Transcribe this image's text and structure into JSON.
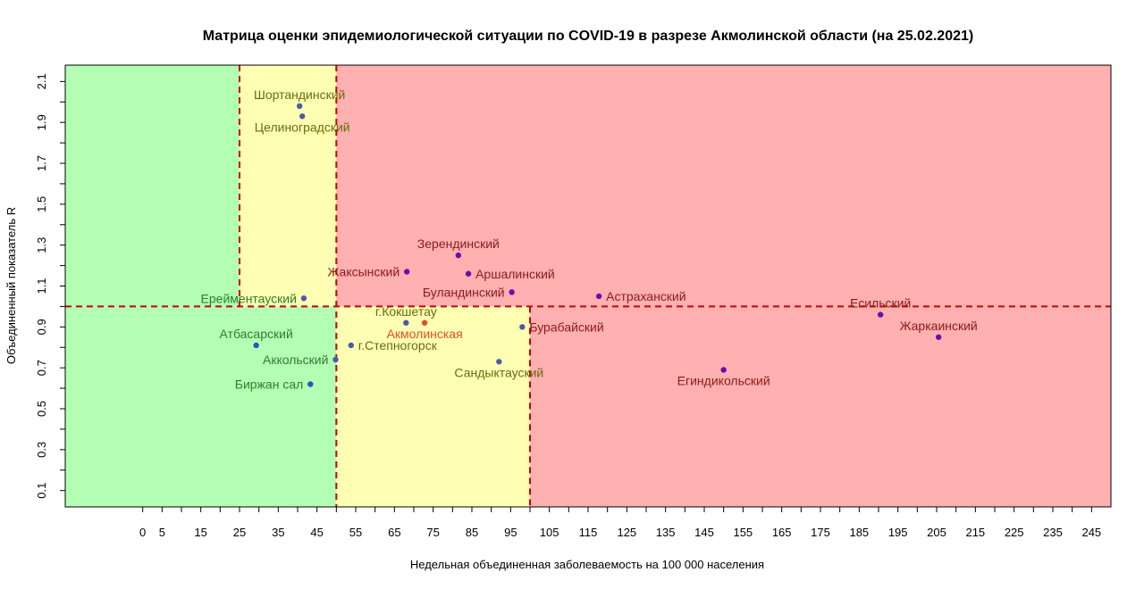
{
  "chart_data": {
    "type": "scatter",
    "title": "Матрица оценки эпидемиологической ситуации по COVID-19 в разрезе Акмолинской области (на 25.02.2021)",
    "xlabel": "Недельная объединенная заболеваемость на 100 000 населения",
    "ylabel": "Объединенный показатель R",
    "xlim": [
      -20,
      250
    ],
    "ylim": [
      0.02,
      2.18
    ],
    "x_ticks": [
      0,
      5,
      15,
      25,
      35,
      45,
      55,
      65,
      75,
      85,
      95,
      105,
      115,
      125,
      135,
      145,
      155,
      165,
      175,
      185,
      195,
      205,
      215,
      225,
      235,
      245
    ],
    "y_ticks": [
      0.1,
      0.3,
      0.5,
      0.7,
      0.9,
      1.1,
      1.3,
      1.5,
      1.7,
      1.9,
      2.1
    ],
    "zones": [
      {
        "xmin": -20,
        "xmax": 25,
        "ymin": 1.0,
        "ymax": 2.18,
        "color": "#b3ffb3"
      },
      {
        "xmin": -20,
        "xmax": 50,
        "ymin": 0.02,
        "ymax": 1.0,
        "color": "#b3ffb3"
      },
      {
        "xmin": 25,
        "xmax": 50,
        "ymin": 1.0,
        "ymax": 2.18,
        "color": "#ffffb3"
      },
      {
        "xmin": 50,
        "xmax": 100,
        "ymin": 0.02,
        "ymax": 1.0,
        "color": "#ffffb3"
      },
      {
        "xmin": 50,
        "xmax": 250,
        "ymin": 1.0,
        "ymax": 2.18,
        "color": "#ffb0b0"
      },
      {
        "xmin": 100,
        "xmax": 250,
        "ymin": 0.02,
        "ymax": 1.0,
        "color": "#ffb0b0"
      }
    ],
    "reference_lines": [
      {
        "orientation": "vertical",
        "value": 25,
        "from": 1.0,
        "to": 2.18,
        "color": "#cc0000"
      },
      {
        "orientation": "vertical",
        "value": 50,
        "from": 0.02,
        "to": 2.18,
        "color": "#cc0000"
      },
      {
        "orientation": "vertical",
        "value": 100,
        "from": 0.02,
        "to": 1.0,
        "color": "#cc0000"
      },
      {
        "orientation": "horizontal",
        "value": 1.0,
        "from": -20,
        "to": 250,
        "color": "#cc0000"
      }
    ],
    "points": [
      {
        "name": "Шортандинский",
        "x": 40.5,
        "y": 1.98,
        "color": "#4a5aa8",
        "label_color": "#6b6b10",
        "pos": "above"
      },
      {
        "name": "Целиноградский",
        "x": 41.2,
        "y": 1.93,
        "color": "#4a5aa8",
        "label_color": "#6b6b10",
        "pos": "below"
      },
      {
        "name": "Зерендинский",
        "x": 81.5,
        "y": 1.25,
        "color": "#6a0dad",
        "label_color": "#8b1a1a",
        "pos": "above"
      },
      {
        "name": "Жаксынский",
        "x": 68.2,
        "y": 1.17,
        "color": "#6a0dad",
        "label_color": "#8b1a1a",
        "pos": "left"
      },
      {
        "name": "Аршалинский",
        "x": 84.1,
        "y": 1.16,
        "color": "#6a0dad",
        "label_color": "#8b1a1a",
        "pos": "right"
      },
      {
        "name": "Буландинский",
        "x": 95.3,
        "y": 1.07,
        "color": "#6a0dad",
        "label_color": "#8b1a1a",
        "pos": "left"
      },
      {
        "name": "Астраханский",
        "x": 117.8,
        "y": 1.05,
        "color": "#6a0dad",
        "label_color": "#8b1a1a",
        "pos": "right"
      },
      {
        "name": "Ерейментауский",
        "x": 41.6,
        "y": 1.04,
        "color": "#4a5aa8",
        "label_color": "#2e7d2e",
        "pos": "left"
      },
      {
        "name": "Есильский",
        "x": 190.5,
        "y": 0.96,
        "color": "#6a0dad",
        "label_color": "#8b1a1a",
        "pos": "above"
      },
      {
        "name": "г.Кокшетау",
        "x": 68.0,
        "y": 0.92,
        "color": "#4a5aa8",
        "label_color": "#6b6b10",
        "pos": "above"
      },
      {
        "name": "Акмолинская",
        "x": 72.8,
        "y": 0.92,
        "color": "#e05020",
        "label_color": "#e05020",
        "pos": "below"
      },
      {
        "name": "Бурабайский",
        "x": 98.0,
        "y": 0.9,
        "color": "#4a5aa8",
        "label_color": "#8b1a1a",
        "pos": "right"
      },
      {
        "name": "Жаркаинский",
        "x": 205.5,
        "y": 0.85,
        "color": "#6a0dad",
        "label_color": "#8b1a1a",
        "pos": "above"
      },
      {
        "name": "Атбасарский",
        "x": 29.3,
        "y": 0.81,
        "color": "#1560bd",
        "label_color": "#2e7d2e",
        "pos": "above"
      },
      {
        "name": "г.Степногорск",
        "x": 53.8,
        "y": 0.81,
        "color": "#4a5aa8",
        "label_color": "#6b6b10",
        "pos": "right"
      },
      {
        "name": "Аккольский",
        "x": 49.8,
        "y": 0.74,
        "color": "#4a5aa8",
        "label_color": "#2e7d2e",
        "pos": "left"
      },
      {
        "name": "Сандыктауский",
        "x": 92.0,
        "y": 0.73,
        "color": "#4a5aa8",
        "label_color": "#6b6b10",
        "pos": "below"
      },
      {
        "name": "Егиндикольский",
        "x": 150.0,
        "y": 0.69,
        "color": "#6a0dad",
        "label_color": "#8b1a1a",
        "pos": "below"
      },
      {
        "name": "Биржан сал",
        "x": 43.3,
        "y": 0.62,
        "color": "#1560bd",
        "label_color": "#2e7d2e",
        "pos": "left"
      }
    ],
    "grid": false,
    "legend": "none"
  }
}
